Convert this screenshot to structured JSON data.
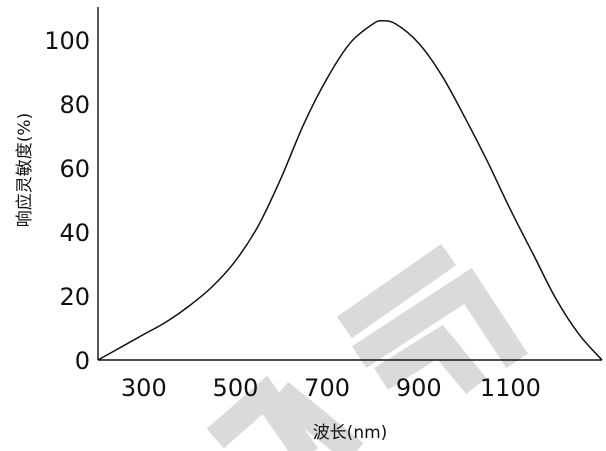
{
  "chart_data": {
    "type": "line",
    "title": "",
    "xlabel": "波长(nm)",
    "ylabel": "响应灵敏度(%)",
    "xlim": [
      200,
      1300
    ],
    "ylim": [
      0,
      110
    ],
    "x_ticks": [
      300,
      500,
      700,
      900,
      1100
    ],
    "y_ticks": [
      0,
      20,
      40,
      60,
      80,
      100
    ],
    "grid": false,
    "legend": "none",
    "series": [
      {
        "color": "#111111",
        "x": [
          200,
          250,
          300,
          350,
          400,
          450,
          500,
          550,
          600,
          650,
          700,
          750,
          800,
          820,
          850,
          900,
          950,
          1000,
          1050,
          1100,
          1150,
          1200,
          1250,
          1300
        ],
        "y": [
          0,
          4,
          8,
          12,
          17,
          23,
          31,
          42,
          57,
          74,
          88,
          99,
          105,
          106,
          105,
          99,
          89,
          76,
          62,
          47,
          33,
          19,
          8,
          0
        ]
      }
    ]
  },
  "watermark": "同"
}
